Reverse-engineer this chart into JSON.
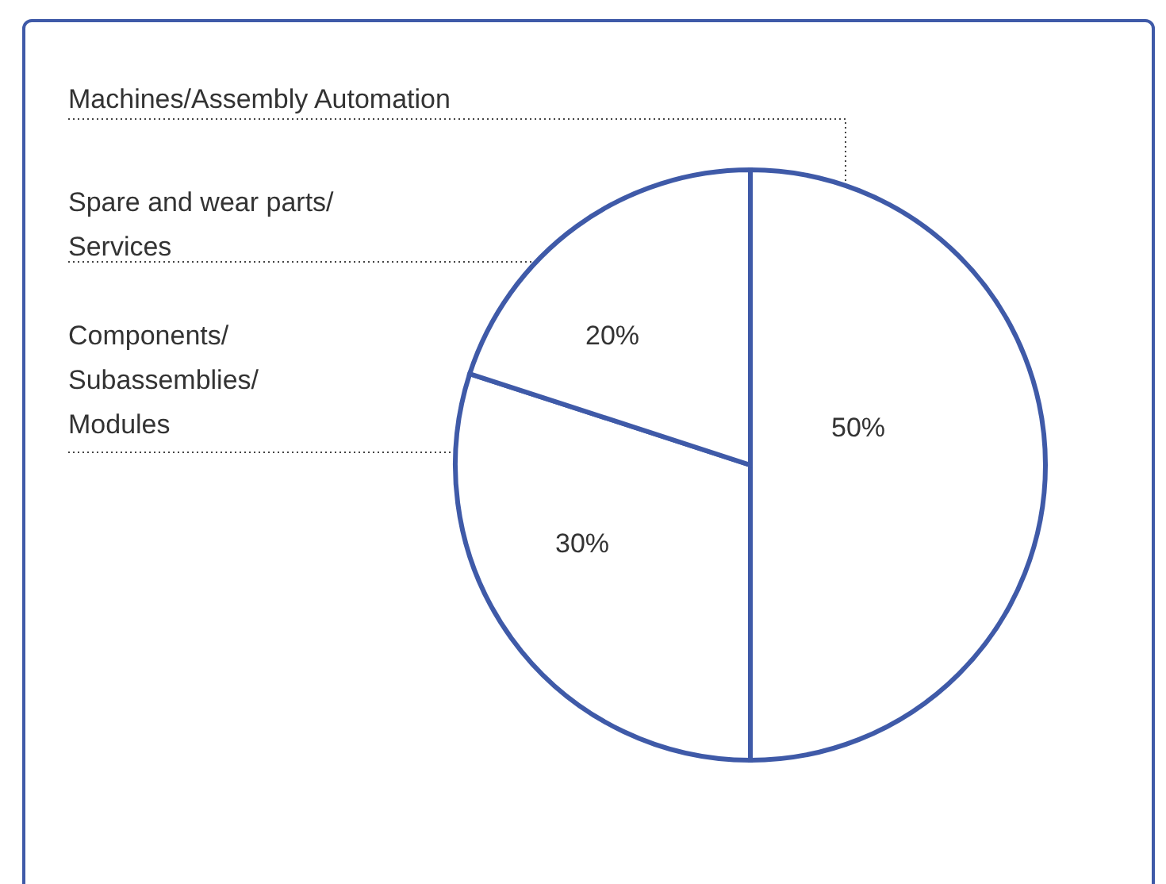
{
  "chart_data": {
    "type": "pie",
    "categories": [
      "Machines/Assembly Automation",
      "Components/ Subassemblies/ Modules",
      "Spare and wear parts/ Services"
    ],
    "values": [
      50,
      30,
      20
    ],
    "colors": [
      "#ffffff",
      "#ffffff",
      "#ffffff"
    ],
    "value_labels": [
      "50%",
      "30%",
      "20%"
    ]
  }
}
